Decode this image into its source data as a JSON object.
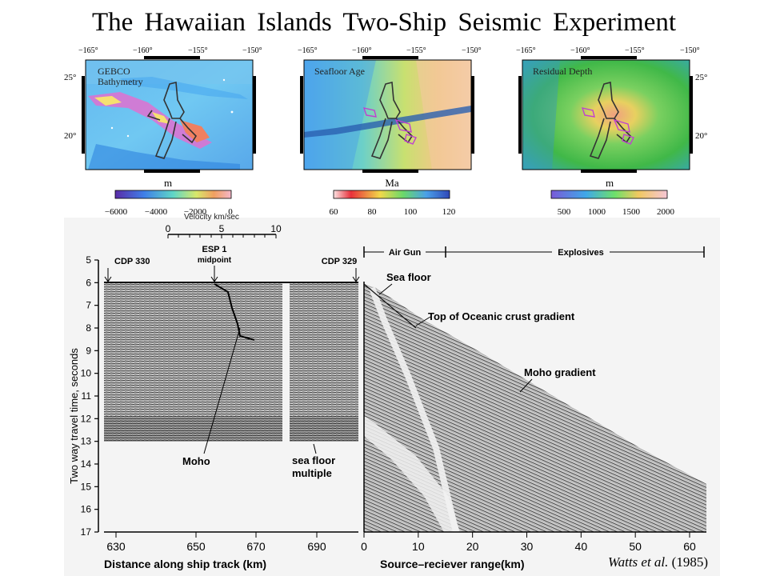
{
  "title": "The Hawaiian Islands Two-Ship Seismic Experiment",
  "maps": {
    "lon_ticks": [
      "−165°",
      "−160°",
      "−155°",
      "−150°"
    ],
    "lat_ticks": [
      "25°",
      "20°"
    ],
    "panels": [
      {
        "label_lines": [
          "GEBCO",
          "Bathymetry"
        ],
        "unit": "m",
        "scale_ticks": [
          "−6000",
          "−4000",
          "−2000",
          "0"
        ]
      },
      {
        "label_lines": [
          "Seafloor Age"
        ],
        "unit": "Ma",
        "scale_ticks": [
          "60",
          "80",
          "100",
          "120"
        ]
      },
      {
        "label_lines": [
          "Residual Depth"
        ],
        "unit": "m",
        "scale_ticks": [
          "500",
          "1000",
          "1500",
          "2000"
        ]
      }
    ]
  },
  "seismic": {
    "velocity_label": "Velocity km/sec",
    "velocity_ticks": [
      "0",
      "5",
      "10"
    ],
    "y_axis_label": "Two way travel time, seconds",
    "y_ticks": [
      "5",
      "6",
      "7",
      "8",
      "9",
      "10",
      "11",
      "12",
      "13",
      "14",
      "15",
      "16",
      "17"
    ],
    "x_left_label": "Distance along ship track (km)",
    "x_left_ticks": [
      "630",
      "650",
      "670",
      "690"
    ],
    "x_right_label": "Source–reciever range(km)",
    "x_right_ticks": [
      "0",
      "10",
      "20",
      "30",
      "40",
      "50",
      "60"
    ],
    "labels": {
      "cdp330": "CDP 330",
      "esp1": "ESP 1",
      "midpoint": "midpoint",
      "cdp329": "CDP 329",
      "air_gun": "Air Gun",
      "explosives": "Explosives",
      "sea_floor": "Sea floor",
      "top_oceanic": "Top of Oceanic crust gradient",
      "moho_gradient": "Moho gradient",
      "moho": "Moho",
      "sea_floor_multiple_1": "sea floor",
      "sea_floor_multiple_2": "multiple"
    }
  },
  "credit": {
    "author": "Watts et al.",
    "year": "(1985)"
  }
}
